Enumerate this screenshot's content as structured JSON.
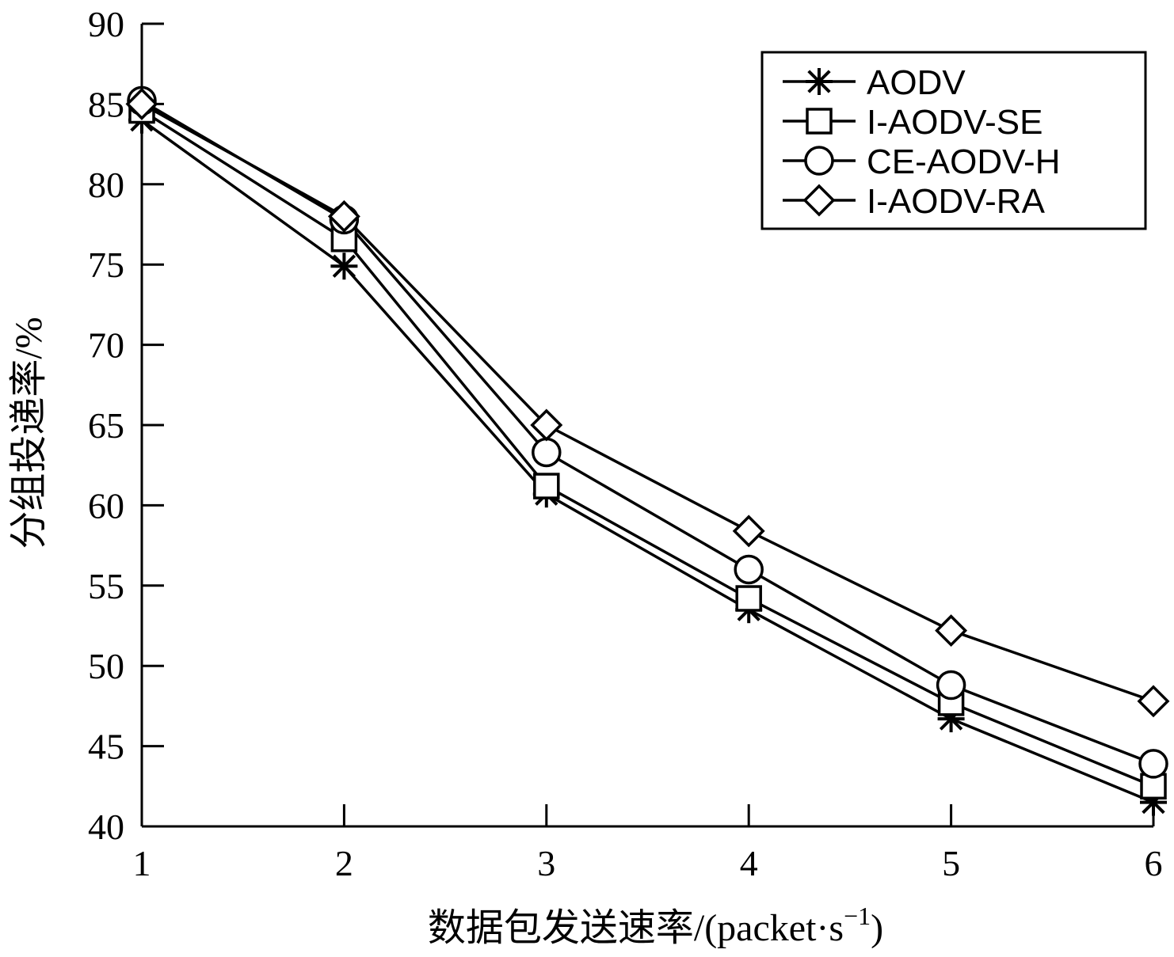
{
  "chart_data": {
    "type": "line",
    "title": "",
    "xlabel": "数据包发送速率/(packet·s",
    "xlabel_superscript": "−1",
    "xlabel_suffix": ")",
    "ylabel": "分组投递率/%",
    "x": [
      1,
      2,
      3,
      4,
      5,
      6
    ],
    "x_ticks": [
      "1",
      "2",
      "3",
      "4",
      "5",
      "6"
    ],
    "y_ticks": [
      "40",
      "45",
      "50",
      "55",
      "60",
      "65",
      "70",
      "75",
      "80",
      "85",
      "90"
    ],
    "xlim": [
      1,
      6
    ],
    "ylim": [
      40,
      90
    ],
    "grid": false,
    "legend_position": "top-right",
    "series": [
      {
        "name": "AODV",
        "marker": "asterisk",
        "values": [
          84.0,
          74.9,
          60.7,
          53.5,
          46.7,
          41.5
        ]
      },
      {
        "name": "I-AODV-SE",
        "marker": "square",
        "values": [
          84.6,
          76.6,
          61.2,
          54.2,
          47.7,
          42.5
        ]
      },
      {
        "name": "CE-AODV-H",
        "marker": "circle",
        "values": [
          85.2,
          77.8,
          63.3,
          56.0,
          48.8,
          43.9
        ]
      },
      {
        "name": "I-AODV-RA",
        "marker": "diamond",
        "values": [
          85.0,
          78.0,
          65.0,
          58.4,
          52.2,
          47.8
        ]
      }
    ],
    "colors": {
      "line": "#000000",
      "background": "#ffffff"
    }
  }
}
